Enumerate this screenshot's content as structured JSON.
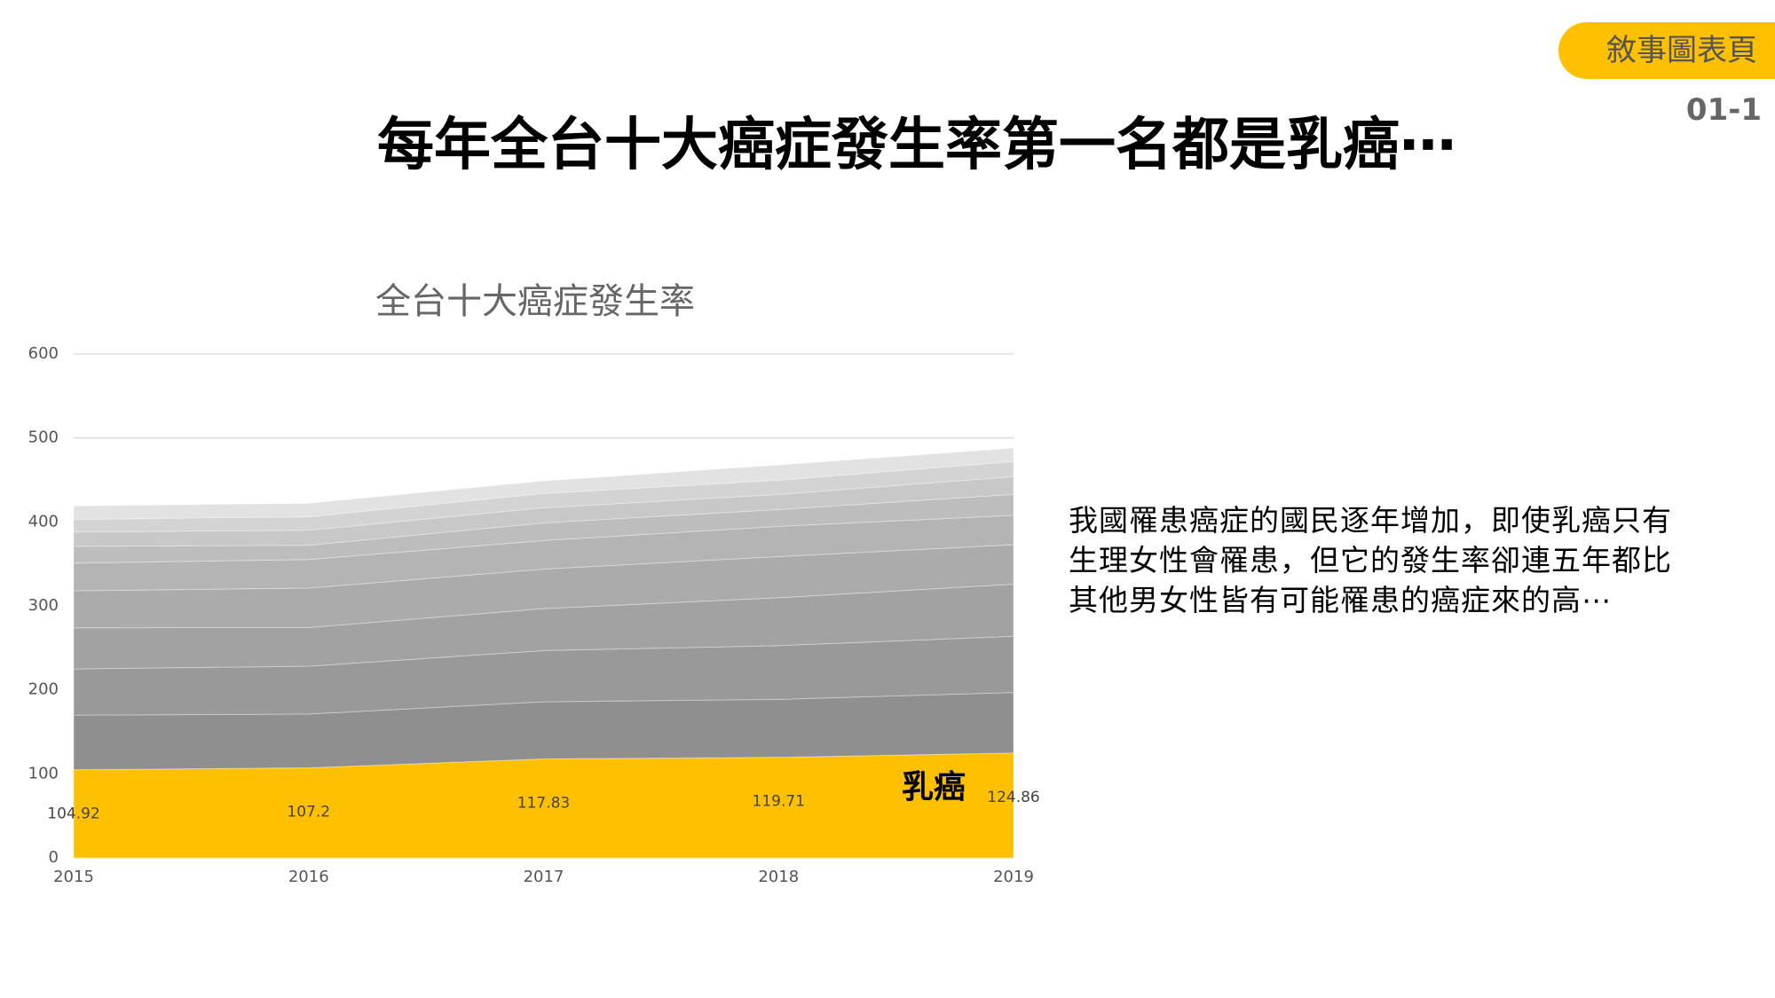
{
  "slide": {
    "tag": "敘事圖表頁",
    "page_number": "01-1",
    "title": "每年全台十大癌症發生率第一名都是乳癌⋯",
    "paragraph": "我國罹患癌症的國民逐年增加，即使乳癌只有生理女性會罹患，但它的發生率卻連五年都比其他男女性皆有可能罹患的癌症來的高⋯"
  },
  "chart_data": {
    "type": "area",
    "stacked": true,
    "title": "全台十大癌症發生率",
    "categories": [
      "2015",
      "2016",
      "2017",
      "2018",
      "2019"
    ],
    "ylim": [
      0,
      600
    ],
    "yticks": [
      0,
      100,
      200,
      300,
      400,
      500,
      600
    ],
    "grid": true,
    "series": [
      {
        "name": "乳癌",
        "color": "#ffc000",
        "data_labels": true,
        "values": [
          104.92,
          107.2,
          117.83,
          119.71,
          124.86
        ]
      },
      {
        "color": "#8f8f8f",
        "values": [
          65,
          64,
          68,
          69,
          72
        ]
      },
      {
        "color": "#999999",
        "values": [
          55,
          57,
          61,
          64,
          67
        ]
      },
      {
        "color": "#a2a2a2",
        "values": [
          49,
          46,
          50,
          57,
          62
        ]
      },
      {
        "color": "#ababab",
        "values": [
          44,
          47,
          47,
          49,
          47
        ]
      },
      {
        "color": "#b4b4b4",
        "values": [
          33,
          34,
          34,
          36,
          35
        ]
      },
      {
        "color": "#bdbdbd",
        "values": [
          20,
          17,
          21,
          20,
          25
        ]
      },
      {
        "color": "#c8c8c8",
        "values": [
          17,
          18,
          18,
          18,
          21
        ]
      },
      {
        "color": "#d3d3d3",
        "values": [
          15,
          16,
          17,
          17,
          18
        ]
      },
      {
        "color": "#e2e2e2",
        "values": [
          16,
          16,
          15,
          18,
          16
        ]
      }
    ]
  }
}
